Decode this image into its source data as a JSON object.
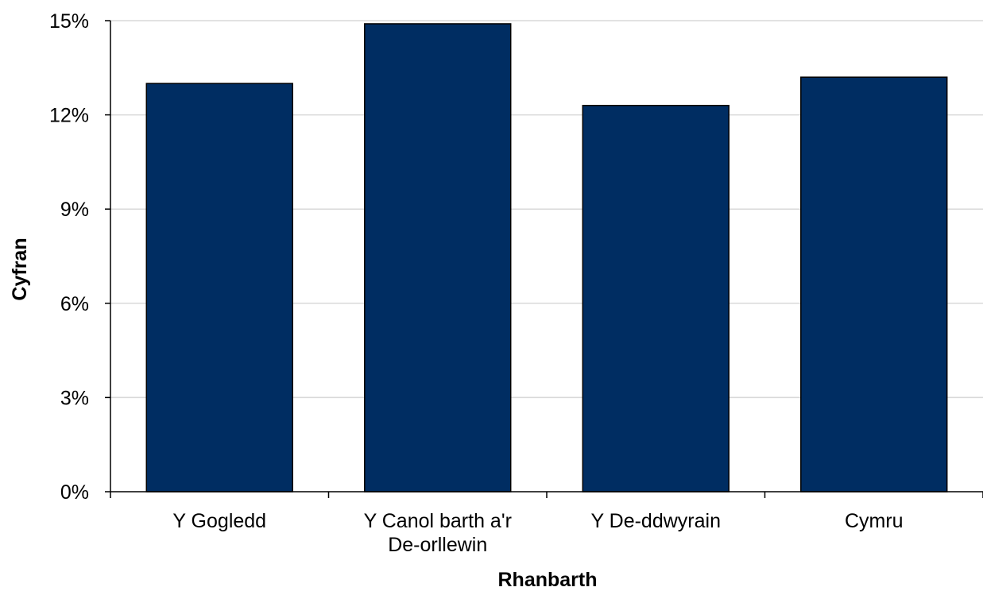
{
  "chart_data": {
    "type": "bar",
    "categories": [
      [
        "Y Gogledd"
      ],
      [
        "Y Canol barth a'r",
        "De-orllewin"
      ],
      [
        "Y De-ddwyrain"
      ],
      [
        "Cymru"
      ]
    ],
    "values": [
      13.0,
      14.9,
      12.3,
      13.2
    ],
    "xlabel": "Rhanbarth",
    "ylabel": "Cyfran",
    "ylim": [
      0,
      15
    ],
    "yticks": [
      0,
      3,
      6,
      9,
      12,
      15
    ],
    "ytick_labels": [
      "0%",
      "3%",
      "6%",
      "9%",
      "12%",
      "15%"
    ],
    "grid": true,
    "colors": {
      "bar": "#002D62",
      "bar_outline": "#000000",
      "grid": "#D9D9D9",
      "axis": "#000000"
    }
  }
}
